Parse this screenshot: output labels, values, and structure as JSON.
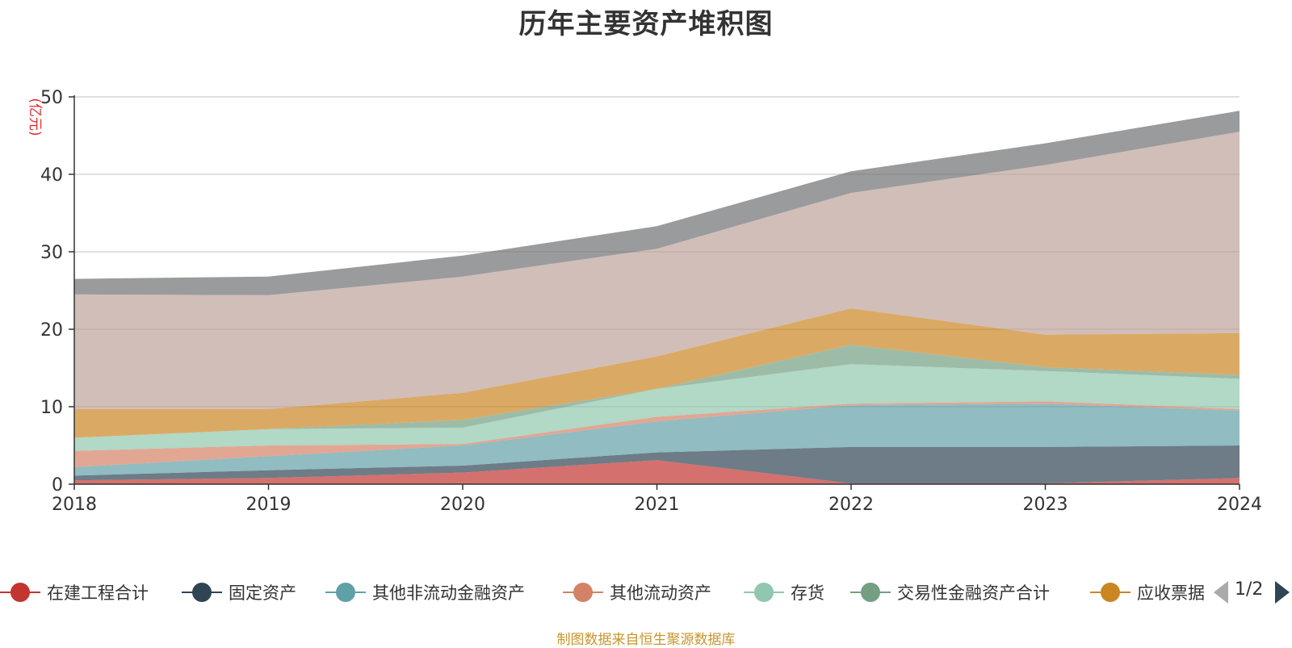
{
  "chart_data": {
    "type": "area",
    "stacked": true,
    "title": "历年主要资产堆积图",
    "ylabel": "(亿元)",
    "xlabel": "",
    "x": [
      "2018",
      "2019",
      "2020",
      "2021",
      "2022",
      "2023",
      "2024"
    ],
    "ylim": [
      0,
      50
    ],
    "yticks": [
      0,
      10,
      20,
      30,
      40,
      50
    ],
    "grid": true,
    "legend_position": "bottom",
    "series": [
      {
        "name": "在建工程合计",
        "color": "#c23531",
        "values": [
          0.5,
          0.8,
          1.5,
          3.1,
          0.1,
          0.1,
          0.8
        ]
      },
      {
        "name": "固定资产",
        "color": "#2f4554",
        "values": [
          0.6,
          1.0,
          0.9,
          1.0,
          4.7,
          4.7,
          4.2
        ]
      },
      {
        "name": "其他非流动金融资产",
        "color": "#61a0a8",
        "values": [
          1.1,
          1.8,
          2.6,
          4.0,
          5.4,
          5.6,
          4.5
        ]
      },
      {
        "name": "其他流动资产",
        "color": "#d48265",
        "values": [
          2.1,
          1.4,
          0.2,
          0.6,
          0.2,
          0.3,
          0.2
        ]
      },
      {
        "name": "存货",
        "color": "#91c7ae",
        "values": [
          1.7,
          2.1,
          2.1,
          3.6,
          5.1,
          3.9,
          3.9
        ]
      },
      {
        "name": "交易性金融资产合计",
        "color": "#749f83",
        "values": [
          0.0,
          0.0,
          1.0,
          0.0,
          2.5,
          0.5,
          0.5
        ]
      },
      {
        "name": "应收票据",
        "color": "#ca8622",
        "values": [
          3.7,
          2.6,
          3.5,
          4.2,
          4.7,
          4.2,
          5.4
        ]
      },
      {
        "name": "",
        "color": "#bda29a",
        "values": [
          14.8,
          14.7,
          15.0,
          13.9,
          14.9,
          21.9,
          26.0
        ]
      },
      {
        "name": "",
        "color": "#6e7074",
        "values": [
          2.0,
          2.4,
          2.7,
          2.9,
          2.8,
          2.8,
          2.7
        ]
      }
    ]
  },
  "legend": {
    "items": [
      {
        "label": "在建工程合计",
        "color": "#c23531"
      },
      {
        "label": "固定资产",
        "color": "#2f4554"
      },
      {
        "label": "其他非流动金融资产",
        "color": "#61a0a8"
      },
      {
        "label": "其他流动资产",
        "color": "#d48265"
      },
      {
        "label": "存货",
        "color": "#91c7ae"
      },
      {
        "label": "交易性金融资产合计",
        "color": "#749f83"
      },
      {
        "label": "应收票据",
        "color": "#ca8622"
      }
    ],
    "page": "1/2"
  },
  "source_note": "制图数据来自恒生聚源数据库"
}
